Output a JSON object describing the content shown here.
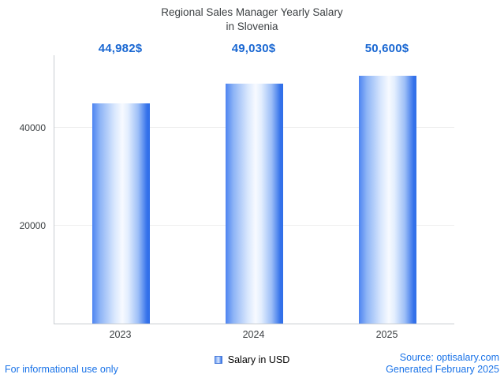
{
  "title": {
    "line1": "Regional Sales Manager Yearly Salary",
    "line2": "in Slovenia"
  },
  "chart_data": {
    "type": "bar",
    "title": "Regional Sales Manager Yearly Salary in Slovenia",
    "categories": [
      "2023",
      "2024",
      "2025"
    ],
    "values": [
      44982,
      49030,
      50600
    ],
    "value_labels": [
      "44,982$",
      "49,030$",
      "50,600$"
    ],
    "xlabel": "",
    "ylabel": "",
    "ylim": [
      0,
      54800
    ],
    "yticks": [
      20000,
      40000
    ],
    "ytick_labels": [
      "20000",
      "40000"
    ],
    "grid": "horizontal-faint",
    "legend": {
      "label": "Salary in USD",
      "position": "bottom-center",
      "marker_color": "#5b8ff2"
    }
  },
  "colors": {
    "accent_blue": "#1a73e8",
    "value_label_blue": "#1967d2",
    "bar_edge_blue": "#2f6fe8",
    "bar_center": "#f7faff",
    "axis_gray": "#c9cdd1",
    "title_text": "#3c4043"
  },
  "footer": {
    "left": "For informational use only",
    "source": "Source: optisalary.com",
    "generated": "Generated February 2025"
  }
}
